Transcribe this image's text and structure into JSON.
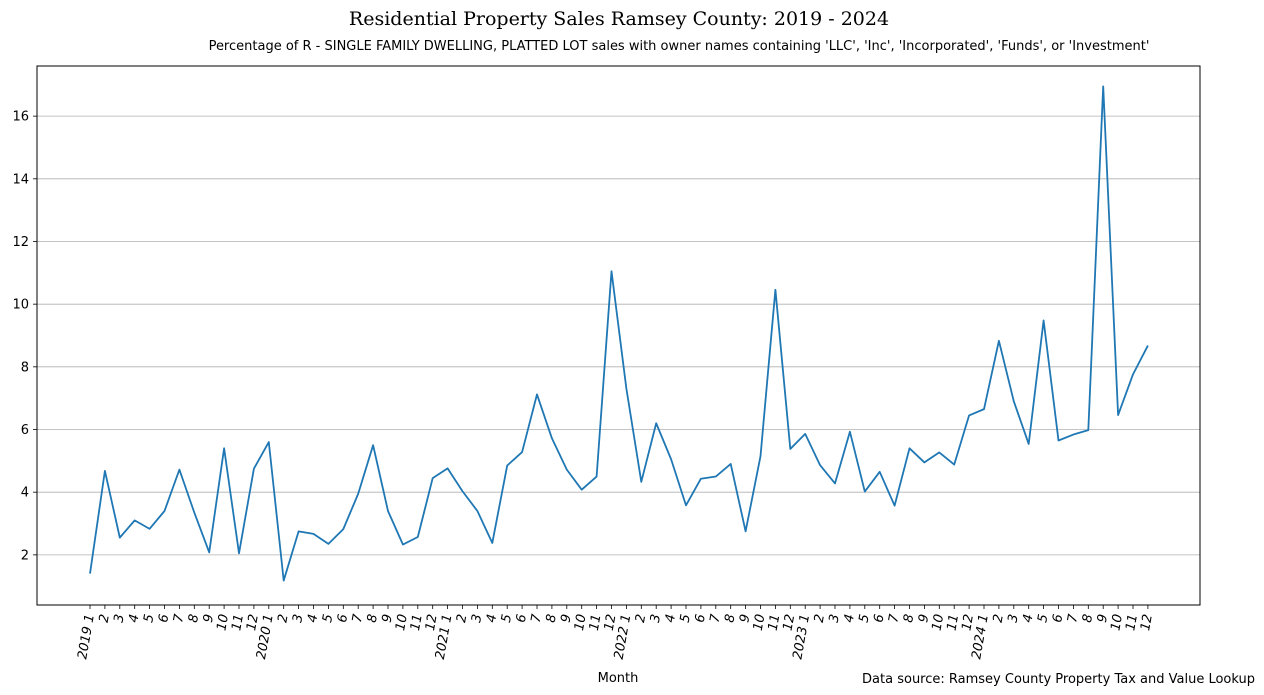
{
  "chart_data": {
    "type": "line",
    "title": "Residential Property Sales Ramsey County: 2019 - 2024",
    "subtitle": "Percentage of R - SINGLE FAMILY DWELLING, PLATTED LOT sales with owner names containing 'LLC', 'Inc', 'Incorporated', 'Funds', or 'Investment'",
    "xlabel": "Month",
    "ylabel": "",
    "source_note": "Data source: Ramsey County Property Tax and Value Lookup",
    "grid": "horizontal",
    "ylim": [
      0.4,
      17.6
    ],
    "yticks": [
      2,
      4,
      6,
      8,
      10,
      12,
      14,
      16
    ],
    "x_tick_labels": [
      "2019 1",
      "2",
      "3",
      "4",
      "5",
      "6",
      "7",
      "8",
      "9",
      "10",
      "11",
      "12",
      "2020 1",
      "2",
      "3",
      "4",
      "5",
      "6",
      "7",
      "8",
      "9",
      "10",
      "11",
      "12",
      "2021 1",
      "2",
      "3",
      "4",
      "5",
      "6",
      "7",
      "8",
      "9",
      "10",
      "11",
      "12",
      "2022 1",
      "2",
      "3",
      "4",
      "5",
      "6",
      "7",
      "8",
      "9",
      "10",
      "11",
      "12",
      "2023 1",
      "2",
      "3",
      "4",
      "5",
      "6",
      "7",
      "8",
      "9",
      "10",
      "11",
      "12",
      "2024 1",
      "2",
      "3",
      "4",
      "5",
      "6",
      "7",
      "8",
      "9",
      "10",
      "11",
      "12"
    ],
    "series": [
      {
        "color": "#1f77b4",
        "values": [
          1.4,
          4.68,
          2.55,
          3.1,
          2.83,
          3.4,
          4.72,
          3.35,
          2.08,
          5.4,
          2.05,
          4.75,
          5.6,
          1.18,
          2.75,
          2.67,
          2.35,
          2.82,
          3.95,
          5.5,
          3.4,
          2.33,
          2.57,
          4.45,
          4.76,
          4.03,
          3.4,
          2.38,
          4.85,
          5.28,
          7.12,
          5.72,
          4.72,
          4.08,
          4.5,
          11.05,
          7.3,
          4.33,
          6.2,
          5.05,
          3.58,
          4.43,
          4.5,
          4.9,
          2.75,
          5.15,
          10.46,
          5.38,
          5.86,
          4.86,
          4.28,
          5.93,
          4.02,
          4.65,
          3.57,
          5.4,
          4.95,
          5.27,
          4.88,
          6.45,
          6.65,
          8.83,
          6.9,
          5.54,
          9.48,
          5.65,
          5.84,
          5.98,
          16.95,
          6.46,
          7.76,
          8.68
        ]
      }
    ]
  }
}
